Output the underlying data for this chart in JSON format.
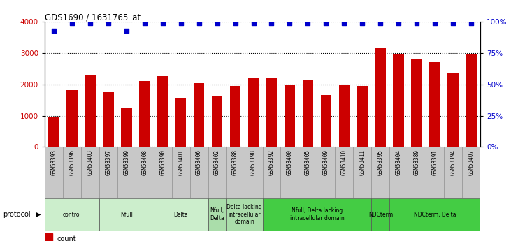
{
  "title": "GDS1690 / 1631765_at",
  "samples": [
    "GSM53393",
    "GSM53396",
    "GSM53403",
    "GSM53397",
    "GSM53399",
    "GSM53408",
    "GSM53390",
    "GSM53401",
    "GSM53406",
    "GSM53402",
    "GSM53388",
    "GSM53398",
    "GSM53392",
    "GSM53400",
    "GSM53405",
    "GSM53409",
    "GSM53410",
    "GSM53411",
    "GSM53395",
    "GSM53404",
    "GSM53389",
    "GSM53391",
    "GSM53394",
    "GSM53407"
  ],
  "counts": [
    950,
    1820,
    2280,
    1760,
    1250,
    2100,
    2260,
    1560,
    2030,
    1640,
    1960,
    2190,
    2190,
    2000,
    2140,
    1650,
    1990,
    1960,
    3150,
    2950,
    2800,
    2700,
    2360,
    2950
  ],
  "percentile": [
    93,
    99,
    99,
    99,
    93,
    99,
    99,
    99,
    99,
    99,
    99,
    99,
    99,
    99,
    99,
    99,
    99,
    99,
    99,
    99,
    99,
    99,
    99,
    99
  ],
  "protocols": [
    {
      "label": "control",
      "start": 0,
      "end": 3,
      "color": "#cceecc"
    },
    {
      "label": "Nfull",
      "start": 3,
      "end": 6,
      "color": "#cceecc"
    },
    {
      "label": "Delta",
      "start": 6,
      "end": 9,
      "color": "#cceecc"
    },
    {
      "label": "Nfull,\nDelta",
      "start": 9,
      "end": 10,
      "color": "#aaddaa"
    },
    {
      "label": "Delta lacking\nintracellular\ndomain",
      "start": 10,
      "end": 12,
      "color": "#aaddaa"
    },
    {
      "label": "Nfull, Delta lacking\nintracellular domain",
      "start": 12,
      "end": 18,
      "color": "#44cc44"
    },
    {
      "label": "NDCterm",
      "start": 18,
      "end": 19,
      "color": "#44cc44"
    },
    {
      "label": "NDCterm, Delta",
      "start": 19,
      "end": 24,
      "color": "#44cc44"
    }
  ],
  "ylim_left": [
    0,
    4000
  ],
  "ylim_right": [
    0,
    100
  ],
  "yticks_left": [
    0,
    1000,
    2000,
    3000,
    4000
  ],
  "yticks_right": [
    0,
    25,
    50,
    75,
    100
  ],
  "bar_color": "#cc0000",
  "dot_color": "#0000cc",
  "dot_size": 18,
  "xticklabel_bg": "#c8c8c8",
  "proto_left_bg": "#ffffff"
}
